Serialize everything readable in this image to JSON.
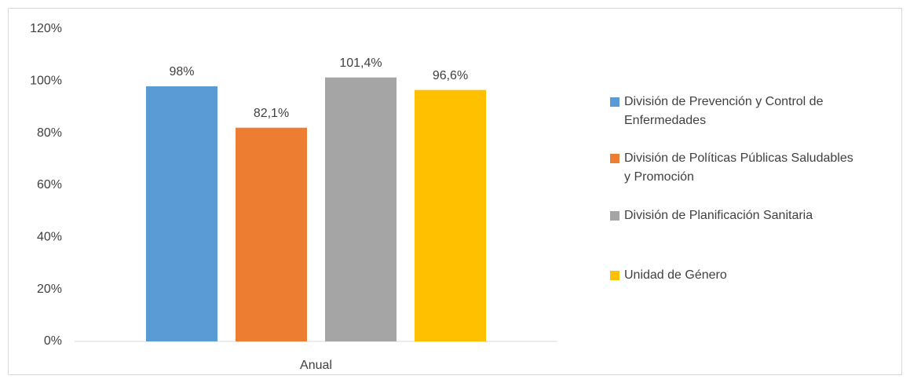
{
  "chart_data": {
    "type": "bar",
    "categories": [
      "Anual"
    ],
    "series": [
      {
        "name": "División de Prevención y Control de Enfermedades",
        "color": "#5b9bd5",
        "values": [
          98
        ],
        "value_labels": [
          "98%"
        ]
      },
      {
        "name": "División de Políticas Públicas Saludables y Promoción",
        "color": "#ed7d31",
        "values": [
          82.1
        ],
        "value_labels": [
          "82,1%"
        ]
      },
      {
        "name": "División de Planificación Sanitaria",
        "color": "#a5a5a5",
        "values": [
          101.4
        ],
        "value_labels": [
          "101,4%"
        ]
      },
      {
        "name": "Unidad de Género",
        "color": "#ffc000",
        "values": [
          96.6
        ],
        "value_labels": [
          "96,6%"
        ]
      }
    ],
    "ylim": [
      0,
      120
    ],
    "yticks": [
      {
        "value": 0,
        "label": "0%"
      },
      {
        "value": 20,
        "label": "20%"
      },
      {
        "value": 40,
        "label": "40%"
      },
      {
        "value": 60,
        "label": "60%"
      },
      {
        "value": 80,
        "label": "80%"
      },
      {
        "value": 100,
        "label": "100%"
      },
      {
        "value": 120,
        "label": "120%"
      }
    ],
    "grid": false,
    "legend": "right"
  }
}
